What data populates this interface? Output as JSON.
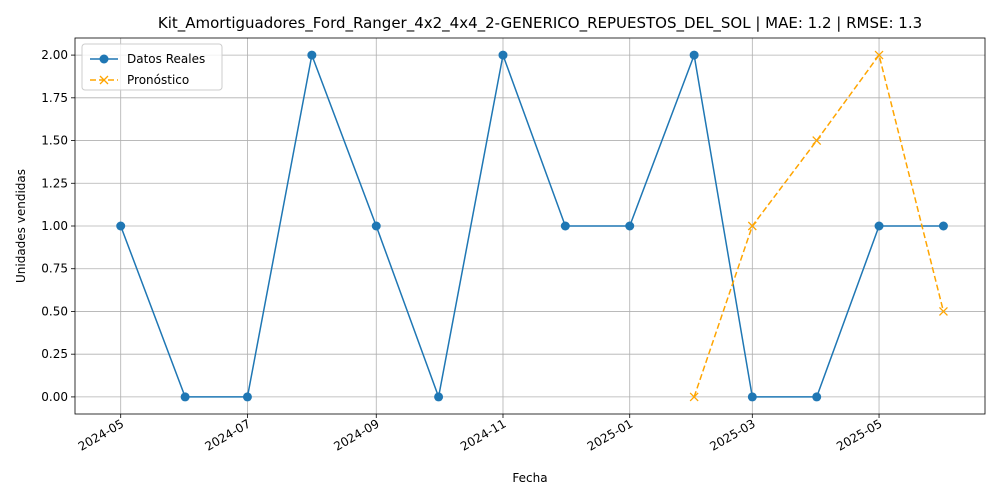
{
  "chart_data": {
    "type": "line",
    "title": "Kit_Amortiguadores_Ford_Ranger_4x2_4x4_2-GENERICO_REPUESTOS_DEL_SOL | MAE: 1.2 | RMSE: 1.3",
    "xlabel": "Fecha",
    "ylabel": "Unidades vendidas",
    "grid": true,
    "legend_position": "top-left",
    "ylim": [
      -0.1,
      2.1
    ],
    "xlim": [
      "2024-04-09",
      "2025-06-21"
    ],
    "y_ticks": [
      0.0,
      0.25,
      0.5,
      0.75,
      1.0,
      1.25,
      1.5,
      1.75,
      2.0
    ],
    "y_tick_labels": [
      "0.00",
      "0.25",
      "0.50",
      "0.75",
      "1.00",
      "1.25",
      "1.50",
      "1.75",
      "2.00"
    ],
    "x_ticks": [
      "2024-05-01",
      "2024-07-01",
      "2024-09-01",
      "2024-11-01",
      "2025-01-01",
      "2025-03-01",
      "2025-05-01"
    ],
    "x_tick_labels": [
      "2024-05",
      "2024-07",
      "2024-09",
      "2024-11",
      "2025-01",
      "2025-03",
      "2025-05"
    ],
    "series": [
      {
        "name": "Datos Reales",
        "color": "#1f77b4",
        "marker": "circle",
        "linestyle": "solid",
        "x": [
          "2024-05-01",
          "2024-06-01",
          "2024-07-01",
          "2024-08-01",
          "2024-09-01",
          "2024-10-01",
          "2024-11-01",
          "2024-12-01",
          "2025-01-01",
          "2025-02-01",
          "2025-03-01",
          "2025-04-01",
          "2025-05-01",
          "2025-06-01"
        ],
        "y": [
          1,
          0,
          0,
          2,
          1,
          0,
          2,
          1,
          1,
          2,
          0,
          0,
          1,
          1
        ]
      },
      {
        "name": "Pronóstico",
        "color": "#ffa500",
        "marker": "x",
        "linestyle": "dashed",
        "x": [
          "2025-02-01",
          "2025-03-01",
          "2025-04-01",
          "2025-05-01",
          "2025-06-01"
        ],
        "y": [
          0,
          1,
          1.5,
          2,
          0.5
        ]
      }
    ]
  }
}
